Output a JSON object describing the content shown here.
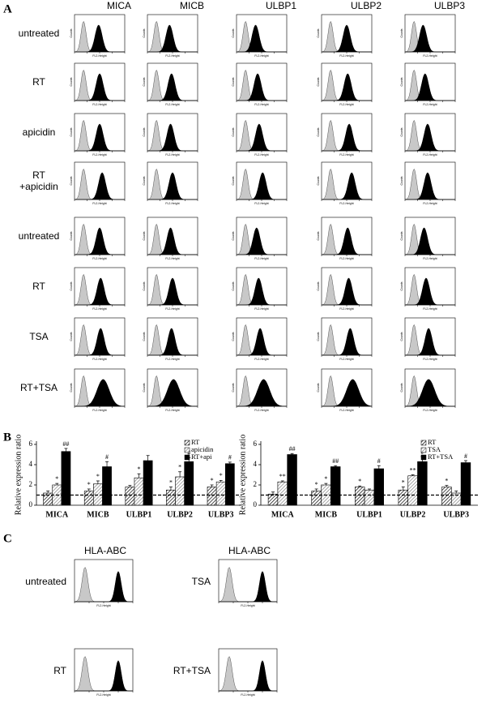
{
  "panel_labels": [
    "A",
    "B",
    "C"
  ],
  "panel_a": {
    "columns": [
      "MICA",
      "MICB",
      "ULBP1",
      "ULBP2",
      "ULBP3"
    ],
    "rows": [
      [
        "untreated"
      ],
      [
        "RT"
      ],
      [
        "apicidin"
      ],
      [
        "RT",
        "+apicidin"
      ],
      [
        "untreated"
      ],
      [
        "RT"
      ],
      [
        "TSA"
      ],
      [
        "RT+TSA"
      ]
    ],
    "x_label": "FL2-Height",
    "y_label": "Counts"
  },
  "chart_data": [
    {
      "type": "bar",
      "y_label": "Relative expression ratio",
      "categories": [
        "MICA",
        "MICB",
        "ULBP1",
        "ULBP2",
        "ULBP3"
      ],
      "series": [
        {
          "name": "RT",
          "color": "#000000",
          "hatch": true,
          "values": [
            1.2,
            1.4,
            1.8,
            1.5,
            1.8
          ],
          "errors": [
            0.2,
            0.2,
            0.15,
            0.3,
            0.2
          ],
          "annotations": [
            null,
            "*",
            null,
            "*",
            "*"
          ]
        },
        {
          "name": "apicidin",
          "color": "#808080",
          "hatch": true,
          "values": [
            2.0,
            2.1,
            2.7,
            2.8,
            2.3
          ],
          "errors": [
            0.15,
            0.3,
            0.4,
            0.5,
            0.15
          ],
          "annotations": [
            "*",
            "*",
            "*",
            "*",
            "*"
          ]
        },
        {
          "name": "RT+api",
          "color": "#000000",
          "hatch": false,
          "values": [
            5.3,
            3.8,
            4.4,
            4.3,
            4.1
          ],
          "errors": [
            0.3,
            0.5,
            0.5,
            0.4,
            0.15
          ],
          "annotations": [
            "##",
            "#",
            null,
            "#",
            "#"
          ]
        }
      ],
      "ylim": [
        0,
        6
      ],
      "yticks": [
        0,
        2,
        4,
        6
      ],
      "reference_line": 1,
      "legend": "top-right"
    },
    {
      "type": "bar",
      "y_label": "Relative expression ratio",
      "categories": [
        "MICA",
        "MICB",
        "ULBP1",
        "ULBP2",
        "ULBP3"
      ],
      "series": [
        {
          "name": "RT",
          "color": "#000000",
          "hatch": true,
          "values": [
            1.1,
            1.4,
            1.8,
            1.5,
            1.8
          ],
          "errors": [
            0.2,
            0.2,
            0.1,
            0.3,
            0.15
          ],
          "annotations": [
            null,
            "*",
            "*",
            "*",
            "*"
          ]
        },
        {
          "name": "TSA",
          "color": "#808080",
          "hatch": true,
          "values": [
            2.3,
            2.0,
            1.5,
            2.9,
            1.2
          ],
          "errors": [
            0.1,
            0.15,
            0.1,
            0.1,
            0.2
          ],
          "annotations": [
            "**",
            "*",
            null,
            "**",
            null
          ]
        },
        {
          "name": "RT+TSA",
          "color": "#000000",
          "hatch": false,
          "values": [
            5.0,
            3.8,
            3.6,
            4.3,
            4.2
          ],
          "errors": [
            0.1,
            0.1,
            0.3,
            0.5,
            0.2
          ],
          "annotations": [
            "##",
            "##",
            "#",
            "#",
            "#"
          ]
        }
      ],
      "ylim": [
        0,
        6
      ],
      "yticks": [
        0,
        2,
        4,
        6
      ],
      "reference_line": 1,
      "legend": "top-right"
    }
  ],
  "panel_c": {
    "columns": [
      {
        "header": "HLA-ABC",
        "rows": [
          "untreated",
          "RT"
        ]
      },
      {
        "header": "HLA-ABC",
        "rows": [
          "TSA",
          "RT+TSA"
        ]
      }
    ],
    "x_label": "FL2-Height"
  }
}
